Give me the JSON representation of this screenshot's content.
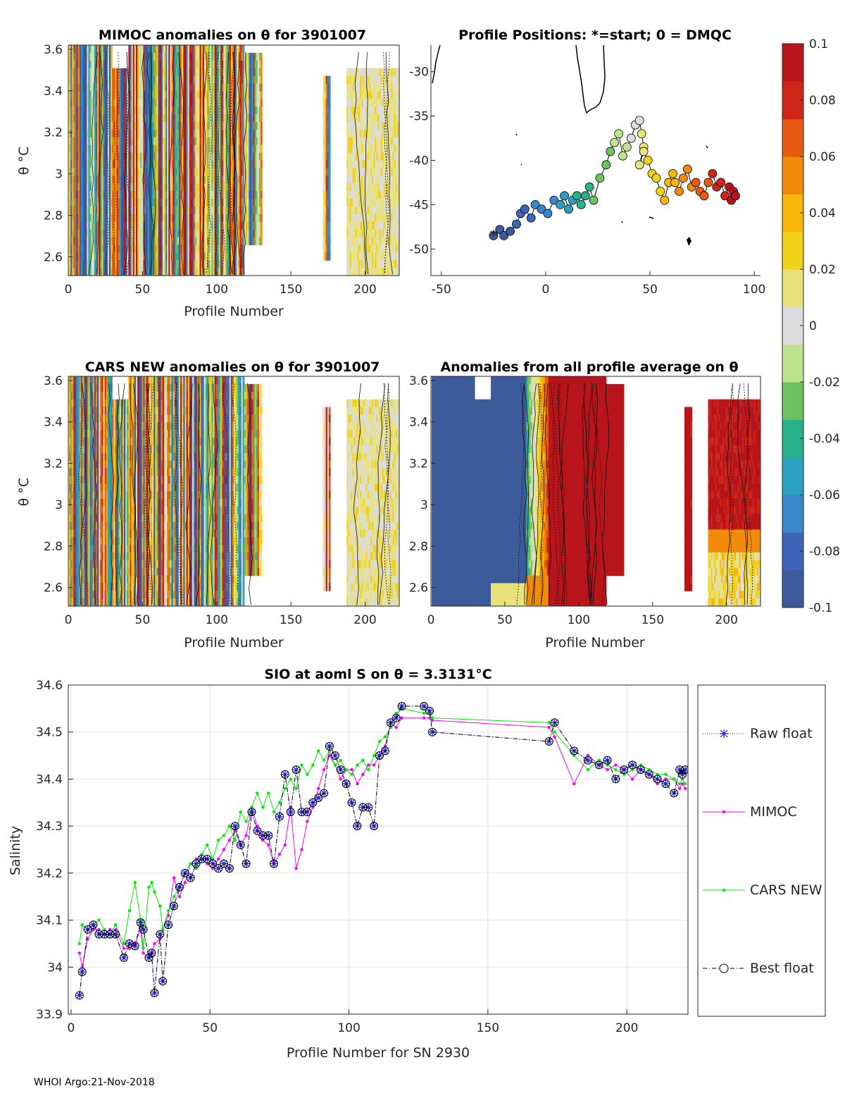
{
  "footer": "WHOI Argo:21-Nov-2018",
  "colors": {
    "raw_float": "#1f1fd0",
    "mimoc": "#ff00ff",
    "cars": "#00ee00",
    "best": "#000000",
    "colormap": [
      "#3d5a9a",
      "#3e64b9",
      "#3b87cc",
      "#2aa1c1",
      "#28b08a",
      "#6cc25f",
      "#bde38f",
      "#dcdcdc",
      "#e9e27a",
      "#f1d21b",
      "#f8b60a",
      "#f28a0c",
      "#e65a12",
      "#cf2519",
      "#b8141c"
    ]
  },
  "chart_data": [
    {
      "id": "mimoc_anom",
      "type": "heatmap",
      "title": "MIMOC anomalies on θ  for 3901007",
      "xlabel": "Profile Number",
      "ylabel": "θ °C",
      "xlim": [
        0,
        223
      ],
      "ylim": [
        2.51,
        3.62
      ],
      "xticks": [
        0,
        50,
        100,
        150,
        200
      ],
      "yticks": [
        2.6,
        2.8,
        3.0,
        3.2,
        3.4,
        3.6
      ],
      "ytick_labels": [
        "2.6",
        "2.8",
        "3",
        "3.2",
        "3.4",
        "3.6"
      ],
      "xtick_labels": [
        "0",
        "50",
        "100",
        "150",
        "200"
      ],
      "coverage": [
        [
          1,
          130
        ],
        [
          172,
          176
        ],
        [
          188,
          223
        ]
      ],
      "clim": [
        -0.1,
        0.1
      ]
    },
    {
      "id": "positions",
      "type": "scatter",
      "title": "Profile Positions: *=start; 0 = DMQC",
      "xlim": [
        -55,
        103
      ],
      "ylim": [
        -53,
        -27
      ],
      "xticks": [
        -50,
        0,
        50,
        100
      ],
      "yticks": [
        -30,
        -35,
        -40,
        -45,
        -50
      ],
      "xtick_labels": [
        "-50",
        "0",
        "50",
        "100"
      ],
      "ytick_labels": [
        "-30",
        "-35",
        "-40",
        "-45",
        "-50"
      ],
      "track_lon": [
        -25,
        -22,
        -20,
        -17,
        -14,
        -12,
        -10,
        -7,
        -5,
        -2,
        1,
        4,
        7,
        9,
        11,
        13,
        15,
        17,
        19,
        21,
        23,
        26,
        29,
        31,
        33,
        35,
        37,
        39,
        41,
        43,
        45,
        46,
        47,
        45,
        47,
        49,
        51,
        53,
        55,
        57,
        59,
        61,
        62,
        64,
        66,
        68,
        70,
        72,
        74,
        76,
        78,
        80,
        82,
        84,
        86,
        88,
        89,
        90,
        91
      ],
      "track_lat": [
        -48.5,
        -47.8,
        -48.5,
        -48.0,
        -47.2,
        -46.0,
        -45.5,
        -46.5,
        -45.0,
        -45.5,
        -46.0,
        -44.5,
        -45.0,
        -44.0,
        -45.5,
        -44.5,
        -44.0,
        -45.0,
        -44.0,
        -43.0,
        -44.5,
        -42.0,
        -40.5,
        -39.0,
        -38.0,
        -37.0,
        -39.5,
        -38.5,
        -37.5,
        -36.0,
        -35.5,
        -37.0,
        -38.5,
        -40.5,
        -39.0,
        -40.0,
        -41.5,
        -42.0,
        -43.5,
        -44.5,
        -42.5,
        -41.5,
        -42.5,
        -43.5,
        -42.0,
        -41.0,
        -43.0,
        -42.5,
        -43.5,
        -44.0,
        -42.5,
        -41.5,
        -43.0,
        -42.5,
        -44.0,
        -43.0,
        -44.5,
        -43.5,
        -44.0
      ],
      "start_label": "*"
    },
    {
      "id": "cars_anom",
      "type": "heatmap",
      "title": "CARS NEW anomalies on θ for 3901007",
      "xlabel": "Profile Number",
      "ylabel": "θ °C",
      "xlim": [
        0,
        223
      ],
      "ylim": [
        2.51,
        3.62
      ],
      "xticks": [
        0,
        50,
        100,
        150,
        200
      ],
      "yticks": [
        2.6,
        2.8,
        3.0,
        3.2,
        3.4,
        3.6
      ],
      "ytick_labels": [
        "2.6",
        "2.8",
        "3",
        "3.2",
        "3.4",
        "3.6"
      ],
      "xtick_labels": [
        "0",
        "50",
        "100",
        "150",
        "200"
      ],
      "coverage": [
        [
          1,
          130
        ],
        [
          172,
          176
        ],
        [
          188,
          223
        ]
      ],
      "clim": [
        -0.1,
        0.1
      ]
    },
    {
      "id": "avg_anom",
      "type": "heatmap",
      "title": "Anomalies from all profile average on θ",
      "xlabel": "Profile Number",
      "xlim": [
        0,
        223
      ],
      "ylim": [
        2.51,
        3.62
      ],
      "xticks": [
        0,
        50,
        100,
        150,
        200
      ],
      "yticks": [
        2.6,
        2.8,
        3.0,
        3.2,
        3.4,
        3.6
      ],
      "ytick_labels": [
        "2.6",
        "2.8",
        "3",
        "3.2",
        "3.4",
        "3.6"
      ],
      "xtick_labels": [
        "0",
        "50",
        "100",
        "150",
        "200"
      ],
      "coverage": [
        [
          1,
          130
        ],
        [
          172,
          176
        ],
        [
          188,
          223
        ]
      ],
      "clim": [
        -0.1,
        0.1
      ]
    },
    {
      "id": "colorbar",
      "type": "colorbar",
      "clim": [
        -0.1,
        0.1
      ],
      "ticks": [
        0.1,
        0.08,
        0.06,
        0.04,
        0.02,
        0,
        -0.02,
        -0.04,
        -0.06,
        -0.08,
        -0.1
      ],
      "tick_labels": [
        "0.1",
        "0.08",
        "0.06",
        "0.04",
        "0.02",
        "0",
        "-0.02",
        "-0.04",
        "-0.06",
        "-0.08",
        "-0.1"
      ]
    },
    {
      "id": "salinity",
      "type": "line",
      "title": "SIO at aoml S on θ = 3.3131°C",
      "xlabel": "Profile Number for SN 2930",
      "ylabel": "Salinity",
      "xlim": [
        -1,
        222
      ],
      "ylim": [
        33.9,
        34.6
      ],
      "xticks": [
        0,
        50,
        100,
        150,
        200
      ],
      "xtick_labels": [
        "0",
        "50",
        "100",
        "150",
        "200"
      ],
      "yticks": [
        33.9,
        34.0,
        34.1,
        34.2,
        34.3,
        34.4,
        34.5,
        34.6
      ],
      "ytick_labels": [
        "33.9",
        "34",
        "34.1",
        "34.2",
        "34.3",
        "34.4",
        "34.5",
        "34.6"
      ],
      "x": [
        3,
        4,
        6,
        8,
        10,
        12,
        14,
        16,
        19,
        21,
        23,
        25,
        26,
        28,
        29,
        30,
        32,
        33,
        35,
        37,
        39,
        41,
        43,
        45,
        47,
        49,
        51,
        53,
        55,
        57,
        59,
        61,
        63,
        65,
        67,
        69,
        71,
        73,
        75,
        77,
        79,
        81,
        83,
        85,
        87,
        89,
        91,
        93,
        95,
        97,
        99,
        101,
        103,
        105,
        107,
        109,
        111,
        113,
        115,
        117,
        119,
        127,
        129,
        130,
        172,
        174,
        181,
        186,
        190,
        193,
        196,
        199,
        202,
        205,
        208,
        211,
        214,
        217,
        219,
        220,
        221
      ],
      "series": [
        {
          "name": "Raw float",
          "values": [
            33.94,
            33.99,
            34.08,
            34.09,
            34.07,
            34.07,
            34.07,
            34.07,
            34.02,
            34.05,
            34.045,
            34.095,
            34.08,
            34.02,
            34.03,
            33.945,
            34.07,
            33.97,
            34.09,
            34.13,
            34.17,
            34.2,
            34.19,
            34.22,
            34.23,
            34.23,
            34.22,
            34.21,
            34.22,
            34.21,
            34.3,
            34.26,
            34.22,
            34.33,
            34.29,
            34.28,
            34.28,
            34.22,
            34.32,
            34.41,
            34.33,
            34.42,
            34.33,
            34.33,
            34.35,
            34.36,
            34.37,
            34.47,
            34.45,
            34.42,
            34.39,
            34.35,
            34.3,
            34.34,
            34.34,
            34.3,
            34.45,
            34.46,
            34.52,
            34.53,
            34.555,
            34.555,
            34.545,
            34.5,
            34.48,
            34.52,
            34.46,
            34.44,
            34.43,
            34.44,
            34.4,
            34.42,
            34.43,
            34.42,
            34.41,
            34.4,
            34.39,
            34.37,
            34.42,
            34.41,
            34.42
          ]
        },
        {
          "name": "MIMOC",
          "values": [
            34.03,
            34.0,
            34.06,
            34.08,
            34.08,
            34.07,
            34.08,
            34.08,
            34.04,
            34.04,
            34.05,
            34.08,
            34.03,
            34.02,
            34.03,
            34.05,
            34.06,
            34.08,
            34.11,
            34.19,
            34.15,
            34.18,
            34.22,
            34.23,
            34.23,
            34.22,
            34.21,
            34.23,
            34.25,
            34.27,
            34.29,
            34.26,
            34.28,
            34.34,
            34.3,
            34.27,
            34.26,
            34.22,
            34.24,
            34.26,
            34.34,
            34.21,
            34.25,
            34.31,
            34.34,
            34.38,
            34.42,
            34.45,
            34.43,
            34.4,
            34.42,
            34.42,
            34.39,
            34.41,
            34.43,
            34.43,
            34.45,
            34.47,
            34.52,
            34.51,
            34.53,
            34.53,
            34.53,
            34.525,
            34.51,
            34.49,
            34.39,
            34.45,
            34.43,
            34.42,
            34.43,
            34.42,
            34.4,
            34.42,
            34.41,
            34.39,
            34.4,
            34.4,
            34.38,
            34.39,
            34.38
          ]
        },
        {
          "name": "CARS NEW",
          "values": [
            34.05,
            34.09,
            34.08,
            34.09,
            34.1,
            34.08,
            34.07,
            34.09,
            34.05,
            34.12,
            34.18,
            34.1,
            34.04,
            34.17,
            34.18,
            34.16,
            34.13,
            34.08,
            34.12,
            34.15,
            34.17,
            34.2,
            34.22,
            34.21,
            34.24,
            34.26,
            34.23,
            34.27,
            34.28,
            34.3,
            34.27,
            34.33,
            34.31,
            34.34,
            34.37,
            34.34,
            34.37,
            34.33,
            34.35,
            34.38,
            34.4,
            34.38,
            34.43,
            34.41,
            34.43,
            34.46,
            34.44,
            34.46,
            34.43,
            34.44,
            34.42,
            34.41,
            34.43,
            34.44,
            34.42,
            34.45,
            34.48,
            34.49,
            34.51,
            34.54,
            34.55,
            34.54,
            34.54,
            34.53,
            34.52,
            34.5,
            34.45,
            34.42,
            34.44,
            34.43,
            34.42,
            34.41,
            34.42,
            34.43,
            34.42,
            34.41,
            34.41,
            34.4,
            34.39,
            34.4,
            34.39
          ]
        },
        {
          "name": "Best float",
          "values": [
            33.94,
            33.99,
            34.08,
            34.09,
            34.07,
            34.07,
            34.07,
            34.07,
            34.02,
            34.05,
            34.045,
            34.095,
            34.08,
            34.02,
            34.03,
            33.945,
            34.07,
            33.97,
            34.09,
            34.13,
            34.17,
            34.2,
            34.19,
            34.22,
            34.23,
            34.23,
            34.22,
            34.21,
            34.22,
            34.21,
            34.3,
            34.26,
            34.22,
            34.33,
            34.29,
            34.28,
            34.28,
            34.22,
            34.32,
            34.41,
            34.33,
            34.42,
            34.33,
            34.33,
            34.35,
            34.36,
            34.37,
            34.47,
            34.45,
            34.42,
            34.39,
            34.35,
            34.3,
            34.34,
            34.34,
            34.3,
            34.45,
            34.46,
            34.52,
            34.53,
            34.555,
            34.555,
            34.545,
            34.5,
            34.48,
            34.52,
            34.46,
            34.44,
            34.43,
            34.44,
            34.4,
            34.42,
            34.43,
            34.42,
            34.41,
            34.4,
            34.39,
            34.37,
            34.42,
            34.41,
            34.42
          ]
        }
      ],
      "legend": [
        "Raw float",
        "MIMOC",
        "CARS NEW",
        "Best float"
      ],
      "grid": true,
      "legend_position": "right-outside"
    }
  ]
}
